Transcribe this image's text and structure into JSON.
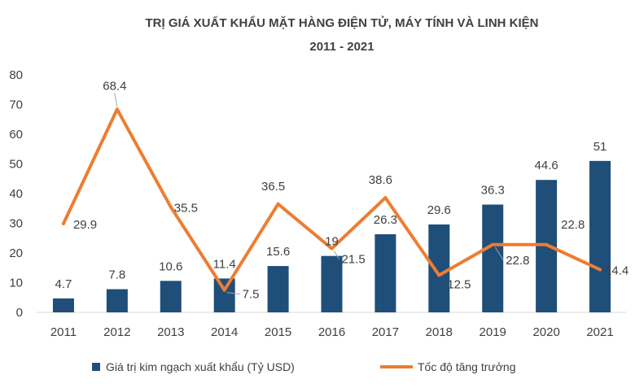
{
  "chart_data": {
    "type": "bar",
    "title": "TRỊ GIÁ XUẤT KHẨU MẶT HÀNG ĐIỆN TỬ, MÁY TÍNH VÀ LINH KIỆN",
    "subtitle": "2011 - 2021",
    "categories": [
      "2011",
      "2012",
      "2013",
      "2014",
      "2015",
      "2016",
      "2017",
      "2018",
      "2019",
      "2020",
      "2021"
    ],
    "ylim": [
      0,
      80
    ],
    "yticks": [
      "0",
      "10",
      "20",
      "30",
      "40",
      "50",
      "60",
      "70",
      "80"
    ],
    "grid": false,
    "legend_position": "bottom",
    "series": [
      {
        "name": "Giá trị kim ngạch xuất khẩu (Tỷ USD)",
        "type": "bar",
        "color": "#1F4E79",
        "values": [
          4.7,
          7.8,
          10.6,
          11.4,
          15.6,
          19,
          26.3,
          29.6,
          36.3,
          44.6,
          51
        ],
        "labels": [
          "4.7",
          "7.8",
          "10.6",
          "11.4",
          "15.6",
          "19",
          "26.3",
          "29.6",
          "36.3",
          "44.6",
          "51"
        ]
      },
      {
        "name": "Tốc độ tăng trưởng",
        "type": "line",
        "color": "#ED7D31",
        "values": [
          29.9,
          68.4,
          35.5,
          7.5,
          36.5,
          21.5,
          38.6,
          12.5,
          22.8,
          22.8,
          14.4
        ],
        "labels": [
          "29.9",
          "68.4",
          "35.5",
          "7.5",
          "36.5",
          "21.5",
          "38.6",
          "12.5",
          "22.8",
          "22.8",
          "14.4"
        ]
      }
    ]
  }
}
